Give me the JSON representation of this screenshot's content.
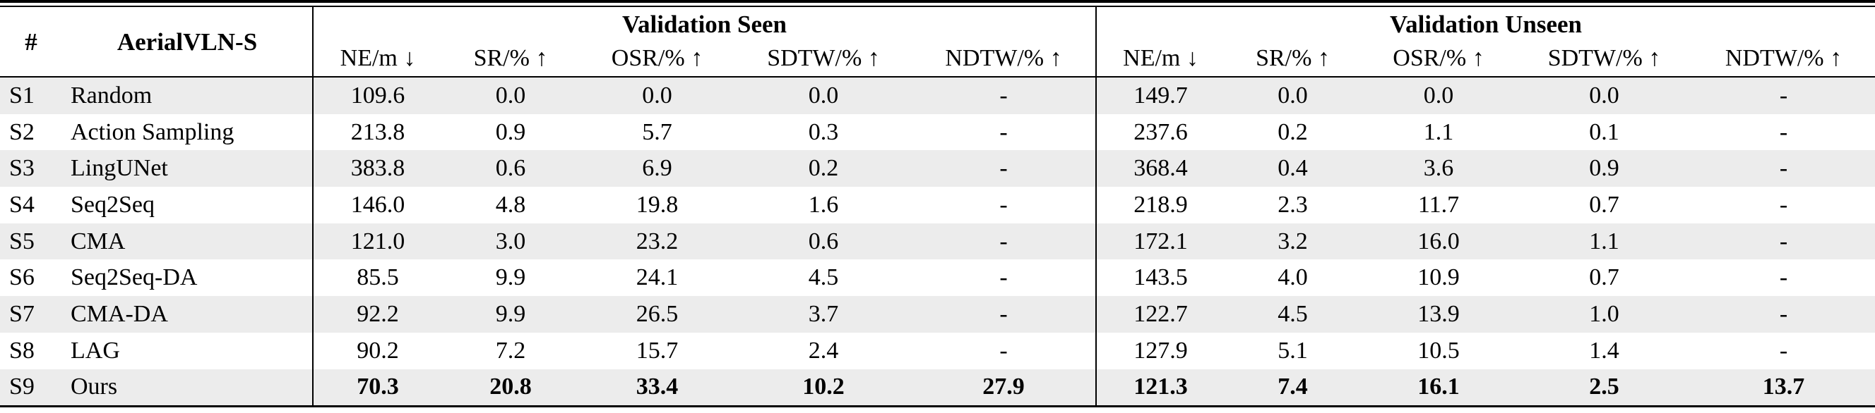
{
  "table": {
    "id_header": "#",
    "name_header": "AerialVLN-S",
    "groups": [
      {
        "key": "seen",
        "label": "Validation Seen"
      },
      {
        "key": "unseen",
        "label": "Validation Unseen"
      }
    ],
    "metrics": [
      "NE/m ↓",
      "SR/% ↑",
      "OSR/% ↑",
      "SDTW/% ↑",
      "NDTW/% ↑"
    ],
    "rows": [
      {
        "id": "S1",
        "method": "Random",
        "seen": [
          "109.6",
          "0.0",
          "0.0",
          "0.0",
          "-"
        ],
        "unseen": [
          "149.7",
          "0.0",
          "0.0",
          "0.0",
          "-"
        ],
        "bold_values": false
      },
      {
        "id": "S2",
        "method": "Action Sampling",
        "seen": [
          "213.8",
          "0.9",
          "5.7",
          "0.3",
          "-"
        ],
        "unseen": [
          "237.6",
          "0.2",
          "1.1",
          "0.1",
          "-"
        ],
        "bold_values": false
      },
      {
        "id": "S3",
        "method": "LingUNet",
        "seen": [
          "383.8",
          "0.6",
          "6.9",
          "0.2",
          "-"
        ],
        "unseen": [
          "368.4",
          "0.4",
          "3.6",
          "0.9",
          "-"
        ],
        "bold_values": false
      },
      {
        "id": "S4",
        "method": "Seq2Seq",
        "seen": [
          "146.0",
          "4.8",
          "19.8",
          "1.6",
          "-"
        ],
        "unseen": [
          "218.9",
          "2.3",
          "11.7",
          "0.7",
          "-"
        ],
        "bold_values": false
      },
      {
        "id": "S5",
        "method": "CMA",
        "seen": [
          "121.0",
          "3.0",
          "23.2",
          "0.6",
          "-"
        ],
        "unseen": [
          "172.1",
          "3.2",
          "16.0",
          "1.1",
          "-"
        ],
        "bold_values": false
      },
      {
        "id": "S6",
        "method": "Seq2Seq-DA",
        "seen": [
          "85.5",
          "9.9",
          "24.1",
          "4.5",
          "-"
        ],
        "unseen": [
          "143.5",
          "4.0",
          "10.9",
          "0.7",
          "-"
        ],
        "bold_values": false
      },
      {
        "id": "S7",
        "method": "CMA-DA",
        "seen": [
          "92.2",
          "9.9",
          "26.5",
          "3.7",
          "-"
        ],
        "unseen": [
          "122.7",
          "4.5",
          "13.9",
          "1.0",
          "-"
        ],
        "bold_values": false
      },
      {
        "id": "S8",
        "method": "LAG",
        "seen": [
          "90.2",
          "7.2",
          "15.7",
          "2.4",
          "-"
        ],
        "unseen": [
          "127.9",
          "5.1",
          "10.5",
          "1.4",
          "-"
        ],
        "bold_values": false
      },
      {
        "id": "S9",
        "method": "Ours",
        "seen": [
          "70.3",
          "20.8",
          "33.4",
          "10.2",
          "27.9"
        ],
        "unseen": [
          "121.3",
          "7.4",
          "16.1",
          "2.5",
          "13.7"
        ],
        "bold_values": true
      }
    ],
    "colors": {
      "row_shade": "#ececec",
      "rule": "#000000"
    }
  }
}
